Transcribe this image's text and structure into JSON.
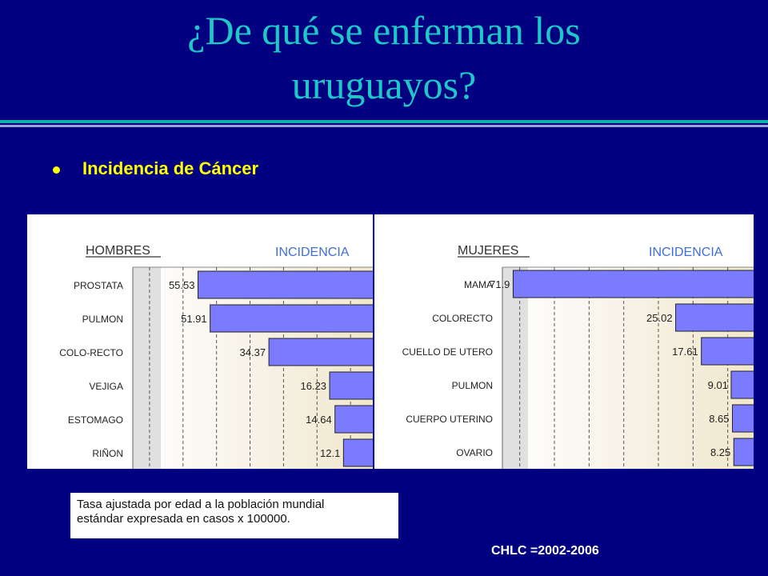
{
  "title": {
    "line1": "¿De qué se enferman los",
    "line2": "uruguayos?"
  },
  "bullet_text": "Incidencia de Cáncer",
  "note": {
    "line1": "Tasa ajustada por edad a la población mundial",
    "line2": "estándar expresada en casos x 100000."
  },
  "source": "CHLC =2002-2006",
  "colors": {
    "background": "#000080",
    "title": "#1fc8c8",
    "accent": "#ffff00",
    "bar": "#7b7bff",
    "incidencia_label": "#3f6fd8"
  },
  "chart_data": [
    {
      "type": "bar",
      "orientation": "horizontal",
      "title": "HOMBRES",
      "value_label": "INCIDENCIA",
      "categories": [
        "PROSTATA",
        "PULMON",
        "COLO-RECTO",
        "VEJIGA",
        "ESTOMAGO",
        "RIÑON"
      ],
      "values": [
        55.53,
        51.91,
        34.37,
        16.23,
        14.64,
        12.1
      ],
      "axis_direction": "reversed",
      "xlim": [
        0,
        75
      ],
      "dashed_gridlines": [
        10,
        20,
        30,
        40,
        50,
        60,
        70
      ]
    },
    {
      "type": "bar",
      "orientation": "horizontal",
      "title": "MUJERES",
      "value_label": "INCIDENCIA",
      "categories": [
        "MAMA",
        "COLORECTO",
        "CUELLO DE UTERO",
        "PULMON",
        "CUERPO UTERINO",
        "OVARIO"
      ],
      "values": [
        71.9,
        25.02,
        17.61,
        9.01,
        8.65,
        8.25
      ],
      "axis_direction": "reversed",
      "xlim": [
        0,
        75
      ],
      "dashed_gridlines": [
        10,
        20,
        30,
        40,
        50,
        60,
        70
      ]
    }
  ]
}
